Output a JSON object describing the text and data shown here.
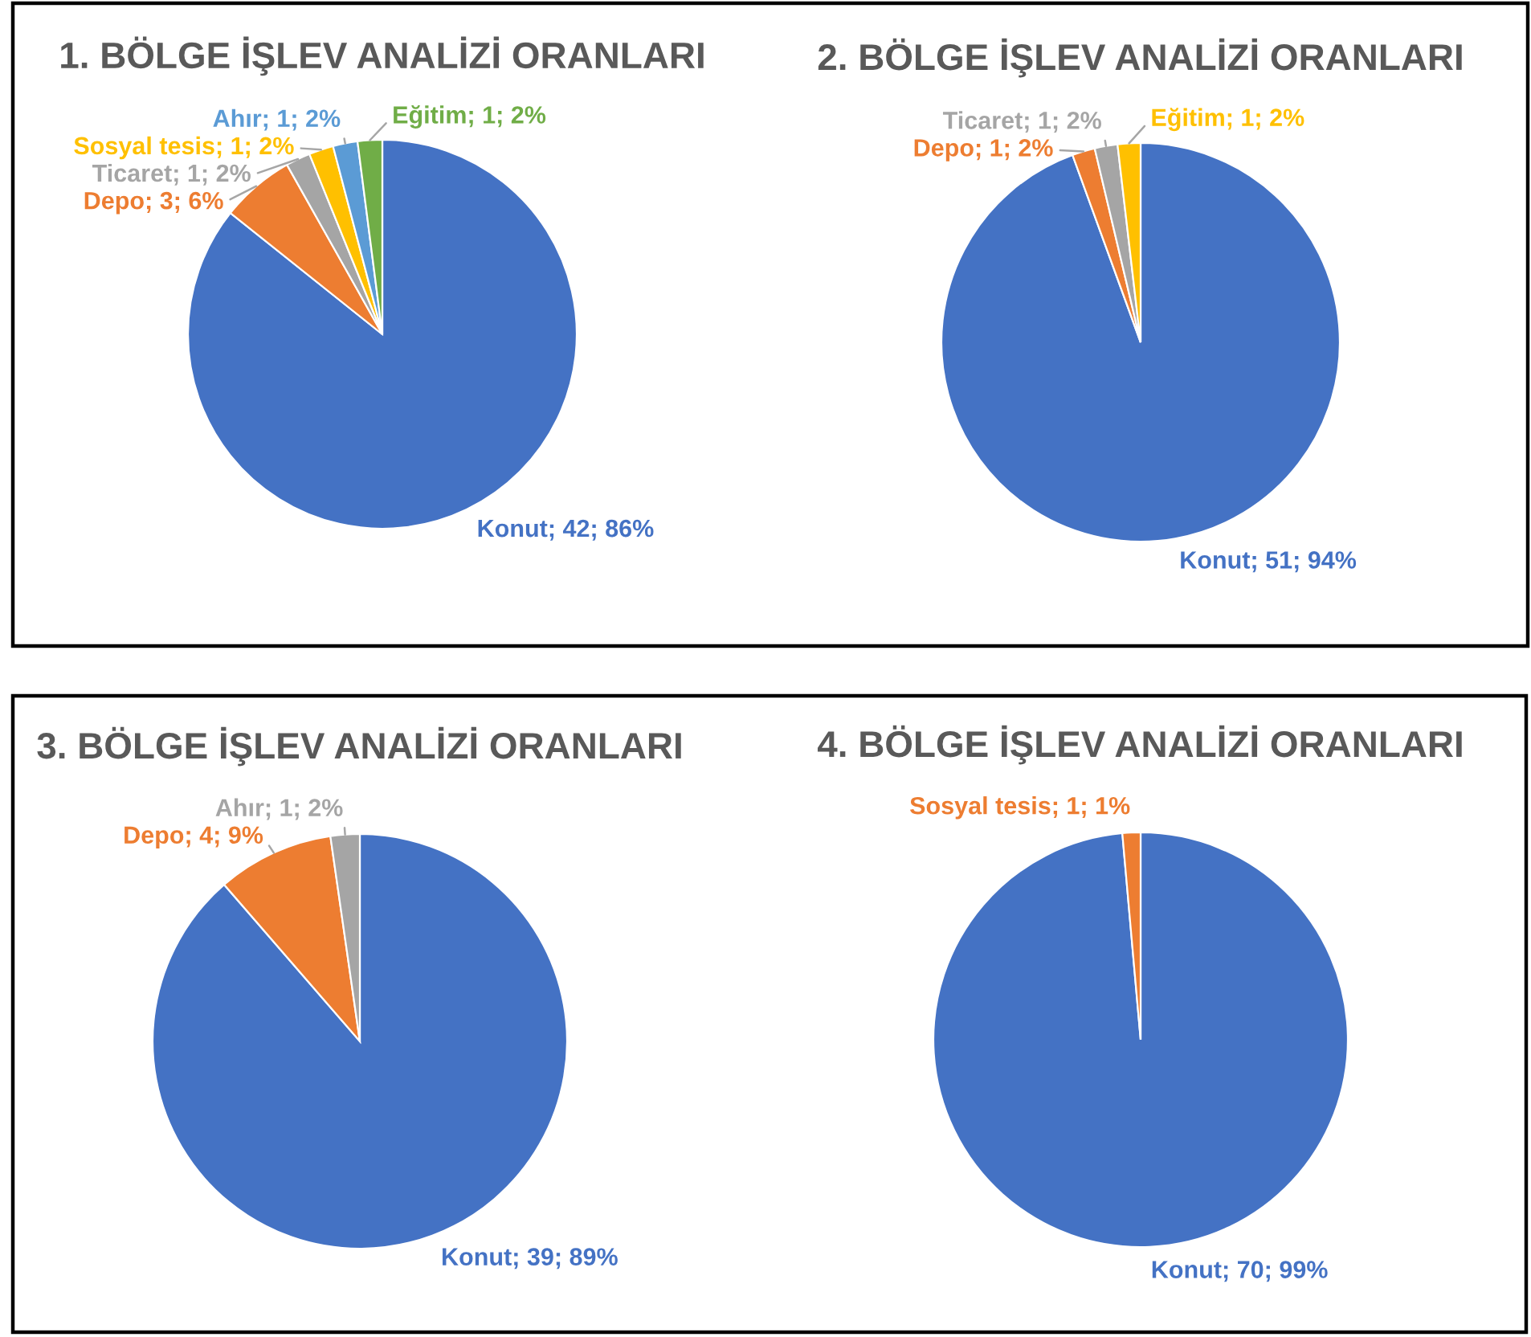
{
  "chart_data": [
    {
      "type": "pie",
      "title": "1. BÖLGE İŞLEV ANALİZİ ORANLARI",
      "categories": [
        "Konut",
        "Depo",
        "Ticaret",
        "Sosyal tesis",
        "Ahır",
        "Eğitim"
      ],
      "values": [
        42,
        3,
        1,
        1,
        1,
        1
      ],
      "colors": [
        "#4472c4",
        "#ed7d31",
        "#a5a5a5",
        "#ffc000",
        "#5b9bd5",
        "#70ad47"
      ],
      "value_labels": [
        "42; 86%",
        "3; 6%",
        "1; 2%",
        "1; 2%",
        "1; 2%",
        "1; 2%"
      ]
    },
    {
      "type": "pie",
      "title": "2. BÖLGE İŞLEV ANALİZİ ORANLARI",
      "categories": [
        "Konut",
        "Depo",
        "Ticaret",
        "Eğitim"
      ],
      "values": [
        51,
        1,
        1,
        1
      ],
      "colors": [
        "#4472c4",
        "#ed7d31",
        "#a5a5a5",
        "#ffc000"
      ],
      "value_labels": [
        "51; 94%",
        "1; 2%",
        "1; 2%",
        "1; 2%"
      ]
    },
    {
      "type": "pie",
      "title": "3. BÖLGE İŞLEV ANALİZİ ORANLARI",
      "categories": [
        "Konut",
        "Depo",
        "Ahır"
      ],
      "values": [
        39,
        4,
        1
      ],
      "colors": [
        "#4472c4",
        "#ed7d31",
        "#a5a5a5"
      ],
      "value_labels": [
        "39; 89%",
        "4; 9%",
        "1; 2%"
      ]
    },
    {
      "type": "pie",
      "title": "4. BÖLGE İŞLEV ANALİZİ ORANLARI",
      "categories": [
        "Konut",
        "Sosyal tesis"
      ],
      "values": [
        70,
        1
      ],
      "colors": [
        "#4472c4",
        "#ed7d31"
      ],
      "value_labels": [
        "70; 99%",
        "1; 1%"
      ]
    }
  ]
}
